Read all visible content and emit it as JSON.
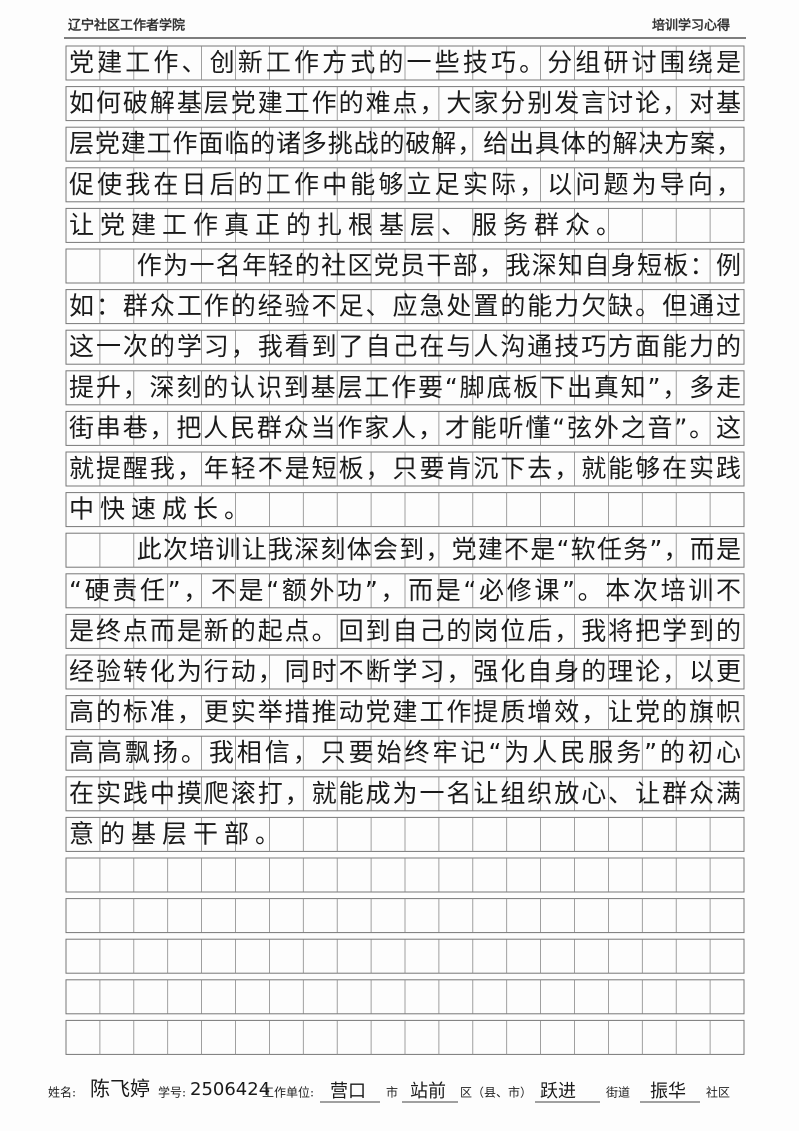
{
  "header": {
    "left": "辽宁社区工作者学院",
    "right": "培训学习心得"
  },
  "body": {
    "paragraphs": [
      [
        "党建工作、创新工作方式的一些技巧。分组研讨围绕是",
        "如何破解基层党建工作的难点，大家分别发言讨论，对基",
        "层党建工作面临的诸多挑战的破解，给出具体的解决方案，",
        "促使我在日后的工作中能够立足实际，以问题为导向，",
        "让党建工作真正的扎根基层、服务群众。"
      ],
      [
        "作为一名年轻的社区党员干部，我深知自身短板：例",
        "如：群众工作的经验不足、应急处置的能力欠缺。但通过",
        "这一次的学习，我看到了自己在与人沟通技巧方面能力的",
        "提升，深刻的认识到基层工作要“脚底板下出真知”，多走",
        "街串巷，把人民群众当作家人，才能听懂“弦外之音”。这",
        "就提醒我，年轻不是短板，只要肯沉下去，就能够在实践",
        "中快速成长。"
      ],
      [
        "此次培训让我深刻体会到，党建不是“软任务”，而是",
        "“硬责任”，不是“额外功”，而是“必修课”。本次培训不",
        "是终点而是新的起点。回到自己的岗位后，我将把学到的",
        "经验转化为行动，同时不断学习，强化自身的理论，以更",
        "高的标准，更实举措推动党建工作提质增效，让党的旗帜",
        "高高飘扬。我相信，只要始终牢记“为人民服务”的初心",
        "在实践中摸爬滚打，就能成为一名让组织放心、让群众满",
        "意的基层干部。"
      ]
    ]
  },
  "footer": {
    "name_label": "姓名:",
    "name": "陈飞婷",
    "id_label": "学号:",
    "id": "2506424",
    "unit_label": "工作单位:",
    "city": "营口",
    "city_label": "市",
    "district": "站前",
    "district_label": "区（县、市）",
    "street": "跃进",
    "street_label": "街道",
    "community": "振华",
    "community_label": "社区"
  }
}
